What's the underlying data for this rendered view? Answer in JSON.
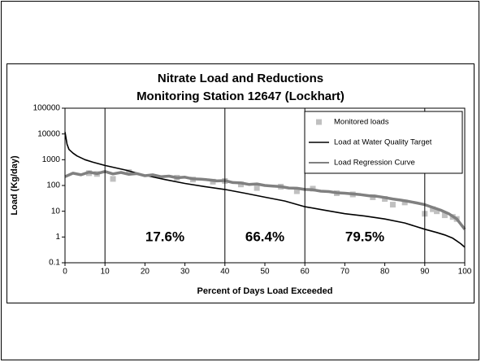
{
  "chart_data": {
    "type": "line",
    "title": [
      "Nitrate Load and Reductions",
      "Monitoring Station 12647 (Lockhart)"
    ],
    "xlabel": "Percent of Days Load Exceeded",
    "ylabel": "Load (Kg/day)",
    "xlim": [
      0,
      100
    ],
    "xticks": [
      0,
      10,
      20,
      30,
      40,
      50,
      60,
      70,
      80,
      90,
      100
    ],
    "ylim": [
      0.1,
      100000
    ],
    "yticks": [
      0.1,
      1,
      10,
      100,
      1000,
      10000,
      100000
    ],
    "ylog": true,
    "legend": "top-right",
    "vlines": [
      10,
      40,
      60,
      90
    ],
    "annotations": [
      "17.6%",
      "66.4%",
      "79.5%"
    ],
    "series": [
      {
        "name": "Monitored loads",
        "mode": "markers",
        "color": "#c0c0c0",
        "x": [
          6,
          8,
          12,
          16,
          28,
          32,
          37,
          40,
          44,
          48,
          54,
          58,
          62,
          68,
          72,
          77,
          80,
          82,
          85,
          90,
          92,
          93,
          95,
          97,
          98
        ],
        "values": [
          300,
          280,
          180,
          330,
          200,
          170,
          140,
          150,
          110,
          80,
          90,
          60,
          75,
          50,
          45,
          35,
          30,
          18,
          22,
          8,
          12,
          10,
          7,
          6,
          5
        ]
      },
      {
        "name": "Load at Water Quality Target",
        "mode": "line",
        "color": "#000000",
        "x": [
          0,
          0.5,
          1,
          2,
          3,
          5,
          7,
          10,
          15,
          20,
          25,
          30,
          35,
          40,
          45,
          50,
          55,
          60,
          65,
          70,
          75,
          80,
          85,
          90,
          93,
          95,
          97,
          98,
          99,
          100
        ],
        "values": [
          12000,
          4000,
          2500,
          1800,
          1400,
          1000,
          800,
          600,
          400,
          250,
          170,
          120,
          90,
          70,
          50,
          35,
          25,
          15,
          11,
          8,
          6.5,
          5,
          3.5,
          2,
          1.5,
          1.2,
          0.9,
          0.7,
          0.55,
          0.4
        ]
      },
      {
        "name": "Load Regression Curve",
        "mode": "line",
        "color": "#808080",
        "x": [
          0,
          2,
          4,
          6,
          8,
          10,
          12,
          14,
          16,
          18,
          20,
          22,
          24,
          26,
          28,
          30,
          32,
          34,
          36,
          38,
          40,
          42,
          44,
          46,
          48,
          50,
          52,
          54,
          56,
          58,
          60,
          62,
          64,
          66,
          68,
          70,
          72,
          74,
          76,
          78,
          80,
          82,
          84,
          86,
          88,
          90,
          92,
          94,
          96,
          98,
          100
        ],
        "values": [
          220,
          300,
          260,
          330,
          290,
          350,
          280,
          320,
          270,
          290,
          240,
          260,
          220,
          230,
          200,
          210,
          180,
          175,
          165,
          150,
          155,
          130,
          125,
          110,
          115,
          100,
          95,
          90,
          80,
          78,
          70,
          68,
          60,
          58,
          52,
          50,
          47,
          44,
          40,
          38,
          34,
          30,
          27,
          24,
          21,
          18,
          14,
          11,
          8,
          5,
          2
        ]
      }
    ]
  }
}
